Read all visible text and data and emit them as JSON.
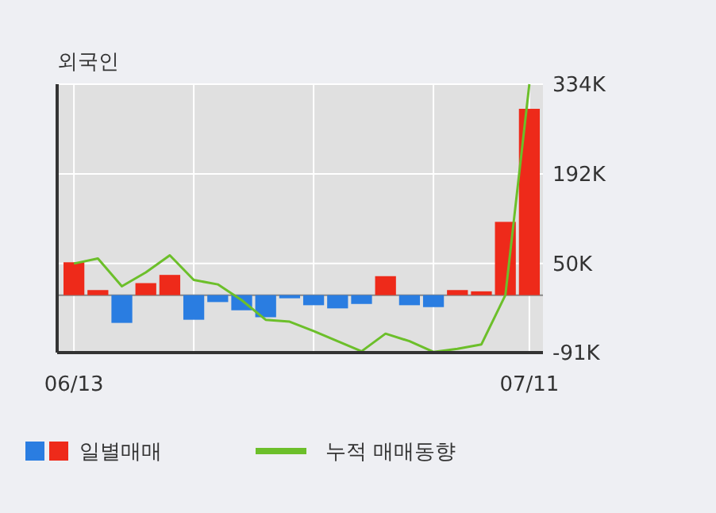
{
  "chart_data": {
    "type": "bar",
    "title": "외국인",
    "categories": [
      "06/13",
      null,
      null,
      null,
      null,
      null,
      null,
      null,
      null,
      null,
      null,
      null,
      null,
      null,
      null,
      null,
      null,
      null,
      null,
      "07/11"
    ],
    "series": [
      {
        "name": "일별매매",
        "values": [
          52,
          8,
          -44,
          19,
          32,
          -39,
          -11,
          -24,
          -35,
          -5,
          -16,
          -21,
          -14,
          30,
          -16,
          -19,
          8,
          6,
          116,
          295
        ],
        "colors": [
          "#ee2a1a",
          "#ee2a1a",
          "#2a7de1",
          "#ee2a1a",
          "#ee2a1a",
          "#2a7de1",
          "#2a7de1",
          "#2a7de1",
          "#2a7de1",
          "#2a7de1",
          "#2a7de1",
          "#2a7de1",
          "#2a7de1",
          "#ee2a1a",
          "#2a7de1",
          "#2a7de1",
          "#ee2a1a",
          "#ee2a1a",
          "#ee2a1a",
          "#ee2a1a"
        ]
      },
      {
        "type": "line",
        "name": "누적 매매동향",
        "color": "#6cbf2a",
        "values": [
          50,
          58,
          14,
          36,
          63,
          24,
          17,
          -8,
          -39,
          -42,
          -57,
          -73,
          -89,
          -61,
          -73,
          -90,
          -85,
          -78,
          0,
          334
        ]
      }
    ],
    "ylim": [
      -91,
      334
    ],
    "yticks": [
      {
        "value": -91,
        "label": "-91K"
      },
      {
        "value": 50,
        "label": "50K"
      },
      {
        "value": 192,
        "label": "192K"
      },
      {
        "value": 334,
        "label": "334K"
      }
    ],
    "grid": true,
    "legend": "bottom left"
  }
}
